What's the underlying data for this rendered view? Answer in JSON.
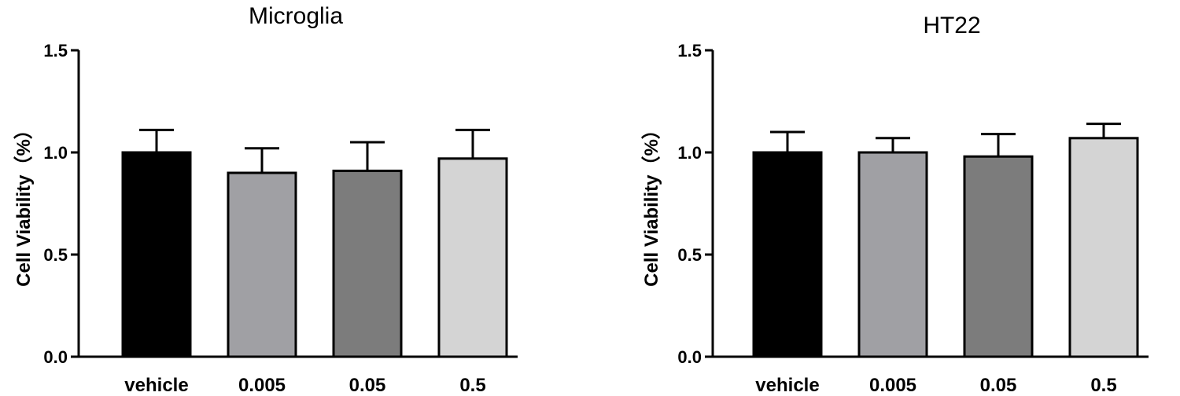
{
  "chart_data": [
    {
      "type": "bar",
      "title": "Microglia",
      "ylabel": "Cell Viability（%）",
      "xlabel": "",
      "ylim": [
        0,
        1.5
      ],
      "yticks": [
        0.0,
        0.5,
        1.0,
        1.5
      ],
      "ytick_labels": [
        "0.0",
        "0.5",
        "1.0",
        "1.5"
      ],
      "categories": [
        "vehicle",
        "0.005",
        "0.05",
        "0.5"
      ],
      "values": [
        1.0,
        0.9,
        0.91,
        0.97
      ],
      "errors": [
        0.11,
        0.12,
        0.14,
        0.14
      ],
      "colors": [
        "#000000",
        "#a0a0a4",
        "#7c7c7c",
        "#d4d4d4"
      ]
    },
    {
      "type": "bar",
      "title": "HT22",
      "ylabel": "Cell Viability（%）",
      "xlabel": "",
      "ylim": [
        0,
        1.5
      ],
      "yticks": [
        0.0,
        0.5,
        1.0,
        1.5
      ],
      "ytick_labels": [
        "0.0",
        "0.5",
        "1.0",
        "1.5"
      ],
      "categories": [
        "vehicle",
        "0.005",
        "0.05",
        "0.5"
      ],
      "values": [
        1.0,
        1.0,
        0.98,
        1.07
      ],
      "errors": [
        0.1,
        0.07,
        0.11,
        0.07
      ],
      "colors": [
        "#000000",
        "#a0a0a4",
        "#7c7c7c",
        "#d4d4d4"
      ]
    }
  ]
}
